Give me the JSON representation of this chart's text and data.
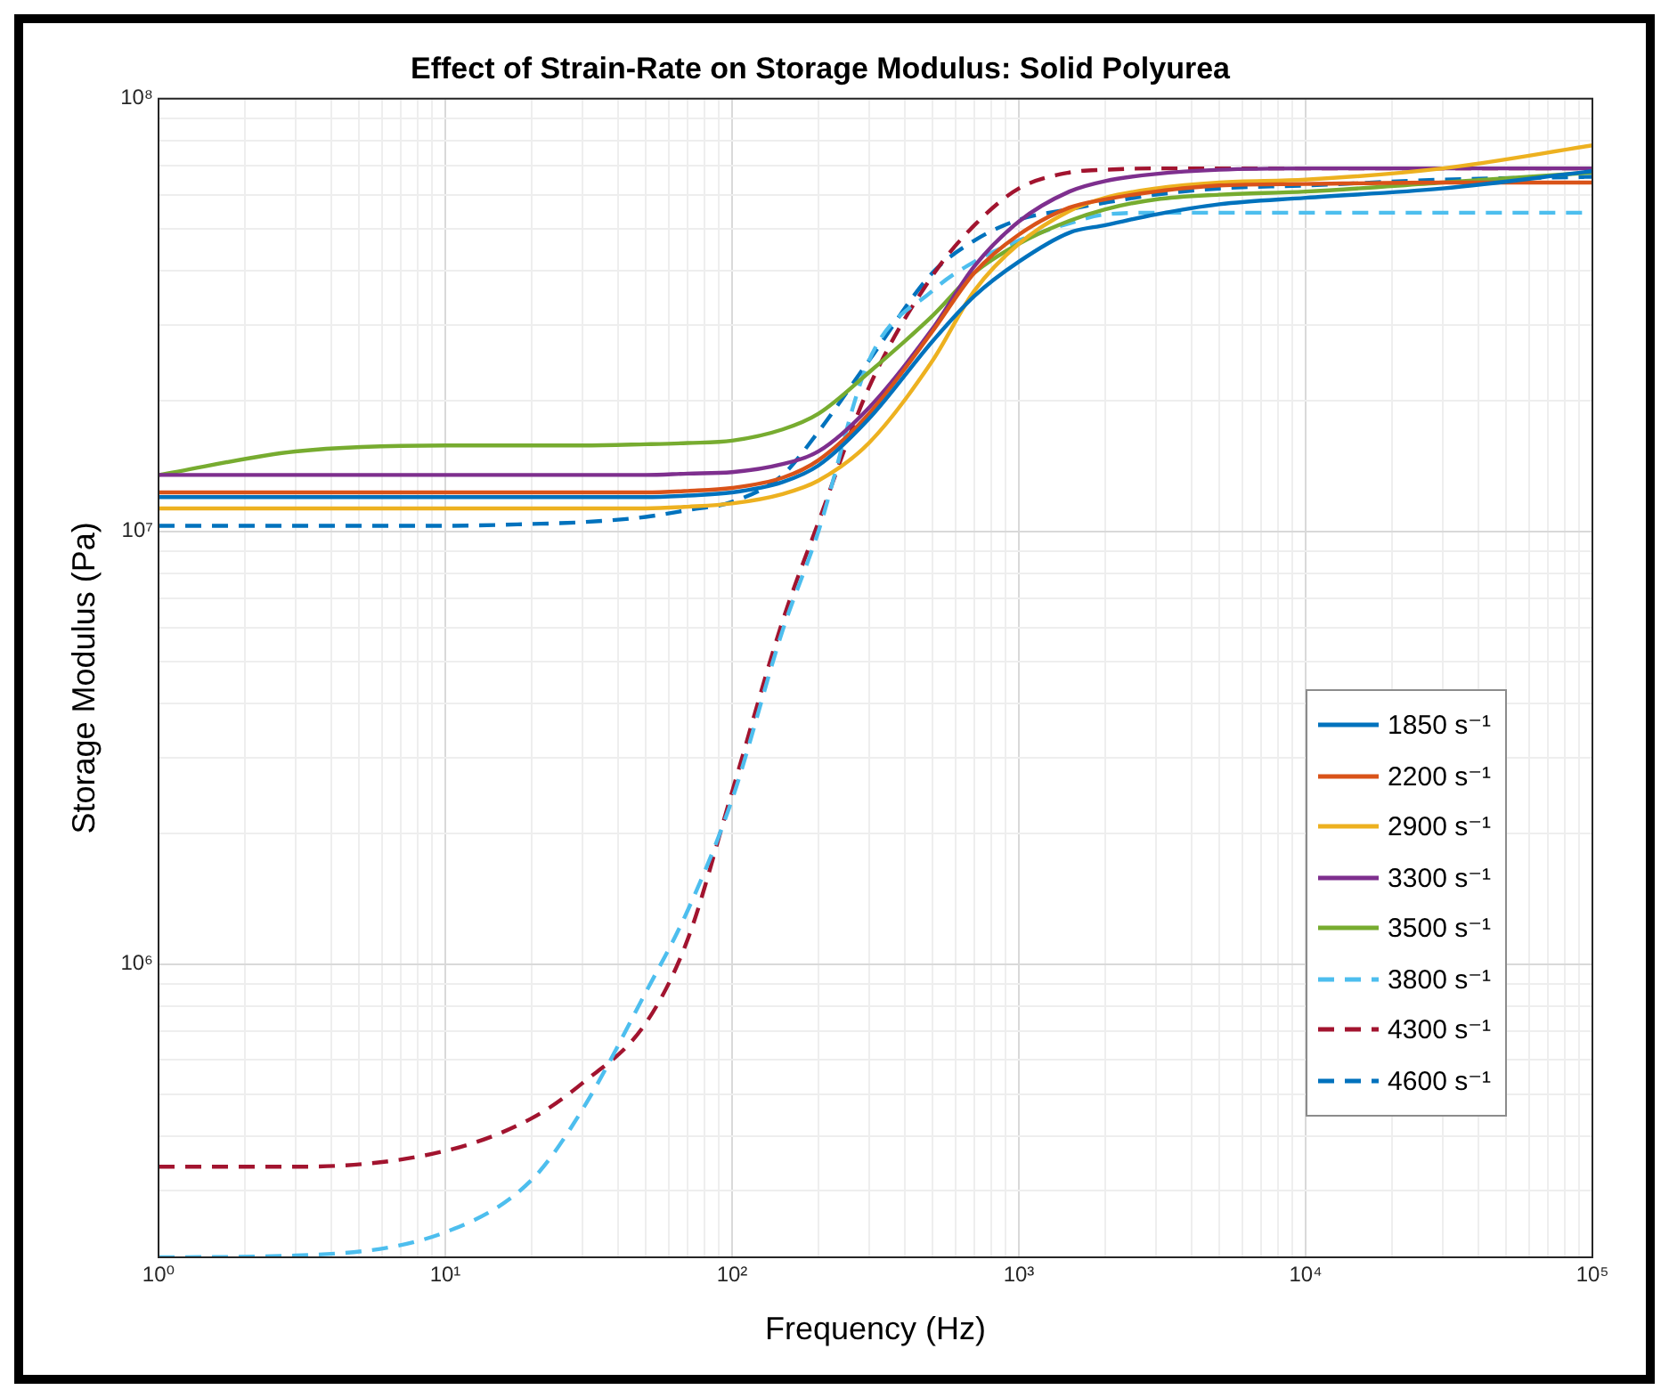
{
  "chart_data": {
    "type": "line",
    "title": "Effect of Strain-Rate on Storage Modulus: Solid Polyurea",
    "xlabel": "Frequency (Hz)",
    "ylabel": "Storage Modulus (Pa)",
    "log": "xy",
    "grid": true,
    "legend": "right",
    "marker": "none",
    "x": [
      1,
      3,
      10,
      20,
      30,
      50,
      70,
      100,
      150,
      200,
      300,
      500,
      700,
      1000,
      1500,
      2000,
      3000,
      5000,
      10000,
      30000,
      100000
    ],
    "xlim": [
      1,
      100000
    ],
    "ylim": [
      210000,
      100000000
    ],
    "xticks": [
      {
        "value": 1,
        "label": "10⁰"
      },
      {
        "value": 2,
        "label": null
      },
      {
        "value": 3,
        "label": null
      },
      {
        "value": 4,
        "label": null
      },
      {
        "value": 5,
        "label": null
      },
      {
        "value": 6,
        "label": null
      },
      {
        "value": 7,
        "label": null
      },
      {
        "value": 8,
        "label": null
      },
      {
        "value": 9,
        "label": null
      },
      {
        "value": 10,
        "label": "10¹"
      },
      {
        "value": 20,
        "label": null
      },
      {
        "value": 30,
        "label": null
      },
      {
        "value": 40,
        "label": null
      },
      {
        "value": 50,
        "label": null
      },
      {
        "value": 60,
        "label": null
      },
      {
        "value": 70,
        "label": null
      },
      {
        "value": 80,
        "label": null
      },
      {
        "value": 90,
        "label": null
      },
      {
        "value": 100,
        "label": "10²"
      },
      {
        "value": 200,
        "label": null
      },
      {
        "value": 300,
        "label": null
      },
      {
        "value": 400,
        "label": null
      },
      {
        "value": 500,
        "label": null
      },
      {
        "value": 600,
        "label": null
      },
      {
        "value": 700,
        "label": null
      },
      {
        "value": 800,
        "label": null
      },
      {
        "value": 900,
        "label": null
      },
      {
        "value": 1000,
        "label": "10³"
      },
      {
        "value": 2000,
        "label": null
      },
      {
        "value": 3000,
        "label": null
      },
      {
        "value": 4000,
        "label": null
      },
      {
        "value": 5000,
        "label": null
      },
      {
        "value": 6000,
        "label": null
      },
      {
        "value": 7000,
        "label": null
      },
      {
        "value": 8000,
        "label": null
      },
      {
        "value": 9000,
        "label": null
      },
      {
        "value": 10000,
        "label": "10⁴"
      },
      {
        "value": 20000,
        "label": null
      },
      {
        "value": 30000,
        "label": null
      },
      {
        "value": 40000,
        "label": null
      },
      {
        "value": 50000,
        "label": null
      },
      {
        "value": 60000,
        "label": null
      },
      {
        "value": 70000,
        "label": null
      },
      {
        "value": 80000,
        "label": null
      },
      {
        "value": 90000,
        "label": null
      },
      {
        "value": 100000,
        "label": "10⁵"
      }
    ],
    "yticks": [
      {
        "value": 300000,
        "label": null
      },
      {
        "value": 400000,
        "label": null
      },
      {
        "value": 500000,
        "label": null
      },
      {
        "value": 600000,
        "label": null
      },
      {
        "value": 700000,
        "label": null
      },
      {
        "value": 800000,
        "label": null
      },
      {
        "value": 900000,
        "label": null
      },
      {
        "value": 1000000,
        "label": "10⁶"
      },
      {
        "value": 2000000,
        "label": null
      },
      {
        "value": 3000000,
        "label": null
      },
      {
        "value": 4000000,
        "label": null
      },
      {
        "value": 5000000,
        "label": null
      },
      {
        "value": 6000000,
        "label": null
      },
      {
        "value": 7000000,
        "label": null
      },
      {
        "value": 8000000,
        "label": null
      },
      {
        "value": 9000000,
        "label": null
      },
      {
        "value": 10000000,
        "label": "10⁷"
      },
      {
        "value": 20000000,
        "label": null
      },
      {
        "value": 30000000,
        "label": null
      },
      {
        "value": 40000000,
        "label": null
      },
      {
        "value": 50000000,
        "label": null
      },
      {
        "value": 60000000,
        "label": null
      },
      {
        "value": 70000000,
        "label": null
      },
      {
        "value": 80000000,
        "label": null
      },
      {
        "value": 90000000,
        "label": null
      },
      {
        "value": 100000000,
        "label": "10⁸"
      }
    ],
    "series": [
      {
        "name": "1850 s⁻¹",
        "color": "#0072bd",
        "line_style": "solid",
        "values": [
          12000000,
          12000000,
          12000000,
          12000000,
          12000000,
          12000000,
          12100000,
          12300000,
          13000000,
          14200000,
          18200000,
          27500000,
          35000000,
          42000000,
          49000000,
          51000000,
          54000000,
          57000000,
          59000000,
          62000000,
          68000000
        ]
      },
      {
        "name": "2200 s⁻¹",
        "color": "#d95319",
        "line_style": "solid",
        "values": [
          12300000,
          12300000,
          12300000,
          12300000,
          12300000,
          12300000,
          12400000,
          12600000,
          13300000,
          14600000,
          18700000,
          29000000,
          39600000,
          48500000,
          56000000,
          58500000,
          61000000,
          63000000,
          63500000,
          64000000,
          64000000
        ]
      },
      {
        "name": "2900 s⁻¹",
        "color": "#edb120",
        "line_style": "solid",
        "values": [
          11300000,
          11300000,
          11300000,
          11300000,
          11300000,
          11300000,
          11400000,
          11600000,
          12200000,
          13100000,
          16000000,
          24800000,
          36000000,
          46200000,
          55000000,
          59000000,
          62000000,
          64000000,
          65000000,
          69000000,
          78000000
        ]
      },
      {
        "name": "3300 s⁻¹",
        "color": "#7e2f8e",
        "line_style": "solid",
        "values": [
          13500000,
          13500000,
          13500000,
          13500000,
          13500000,
          13500000,
          13600000,
          13700000,
          14300000,
          15300000,
          19300000,
          29400000,
          41000000,
          52000000,
          61000000,
          64500000,
          67000000,
          68500000,
          69000000,
          69000000,
          69000000
        ]
      },
      {
        "name": "3500 s⁻¹",
        "color": "#77ac30",
        "line_style": "solid",
        "values": [
          13500000,
          15300000,
          15800000,
          15800000,
          15800000,
          15900000,
          16000000,
          16200000,
          17200000,
          18700000,
          23300000,
          31500000,
          39600000,
          46200000,
          52200000,
          55500000,
          58500000,
          60000000,
          61000000,
          64000000,
          67500000
        ]
      },
      {
        "name": "3800 s⁻¹",
        "color": "#4dbeee",
        "line_style": "dashed",
        "values": [
          210000,
          212000,
          240000,
          317000,
          460000,
          860000,
          1330000,
          2400000,
          5900000,
          10000000,
          24800000,
          36000000,
          42000000,
          47000000,
          51500000,
          54000000,
          54500000,
          54500000,
          54500000,
          54500000,
          54500000
        ]
      },
      {
        "name": "4300 s⁻¹",
        "color": "#a2142f",
        "line_style": "dashed",
        "values": [
          340000,
          340000,
          370000,
          440000,
          530000,
          730000,
          1140000,
          2500000,
          6200000,
          10500000,
          21500000,
          39000000,
          51000000,
          62000000,
          67500000,
          68500000,
          69000000,
          69000000,
          69000000,
          69000000,
          69000000
        ]
      },
      {
        "name": "4600 s⁻¹",
        "color": "#0072bd",
        "line_style": "dashed",
        "values": [
          10300000,
          10300000,
          10300000,
          10400000,
          10500000,
          10800000,
          11200000,
          11700000,
          13500000,
          17000000,
          24800000,
          39600000,
          47000000,
          52500000,
          55500000,
          57500000,
          60000000,
          62000000,
          63000000,
          65000000,
          66000000
        ]
      }
    ]
  }
}
